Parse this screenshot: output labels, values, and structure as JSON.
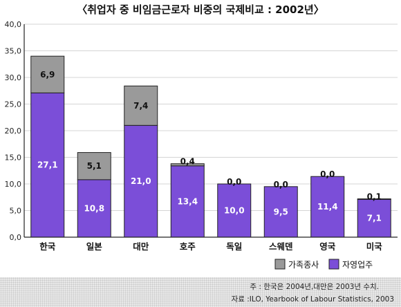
{
  "chart_data": {
    "type": "bar",
    "stacked": true,
    "title": "〈취업자 중 비임금근로자 비중의 국제비교 : 2002년〉",
    "categories": [
      "한국",
      "일본",
      "대만",
      "호주",
      "독일",
      "스웨덴",
      "영국",
      "미국"
    ],
    "series": [
      {
        "name": "자영업주",
        "values": [
          27.1,
          10.8,
          21.0,
          13.4,
          10.0,
          9.5,
          11.4,
          7.1
        ],
        "labels": [
          "27,1",
          "10,8",
          "21,0",
          "13,4",
          "10,0",
          "9,5",
          "11,4",
          "7,1"
        ],
        "color": "#7b4ed8"
      },
      {
        "name": "가족종사",
        "values": [
          6.9,
          5.1,
          7.4,
          0.4,
          0.0,
          0.0,
          0.0,
          0.1
        ],
        "labels": [
          "6,9",
          "5,1",
          "7,4",
          "0,4",
          "0,0",
          "0,0",
          "0,0",
          "0,1"
        ],
        "color": "#9a9a9a"
      }
    ],
    "ylim": [
      0,
      40
    ],
    "yticks": [
      "0,0",
      "5,0",
      "10,0",
      "15,0",
      "20,0",
      "25,0",
      "30,0",
      "35,0",
      "40,0"
    ],
    "grid": true,
    "legend_position": "bottom-right"
  },
  "notes": {
    "line1": "주 : 한국은 2004년,대만은 2003년 수치.",
    "line2": "자료 :ILO, Yearbook of Labour Statistics, 2003"
  }
}
